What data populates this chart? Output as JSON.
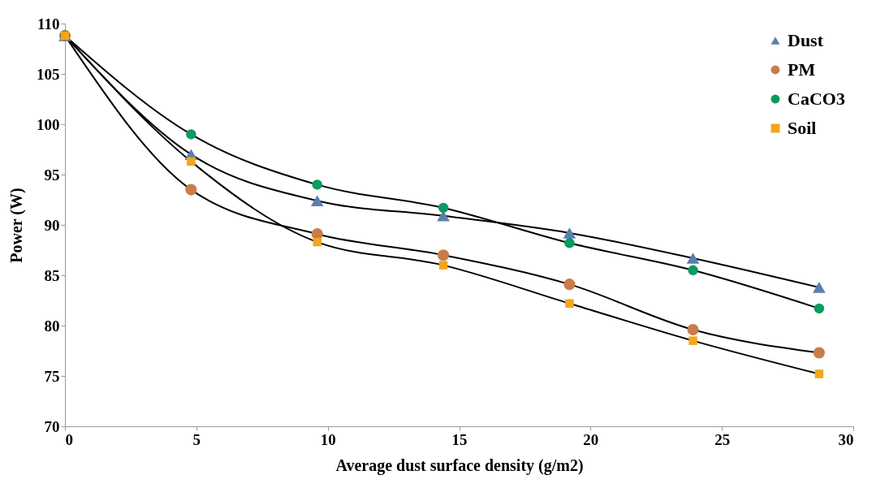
{
  "chart_data": {
    "type": "line",
    "xlabel": "Average dust surface density (g/m2)",
    "ylabel": "Power (W)",
    "x": [
      0,
      4.8,
      9.6,
      14.4,
      19.2,
      23.9,
      28.7
    ],
    "xlim": [
      0,
      30
    ],
    "xticks": [
      0,
      5,
      10,
      15,
      20,
      25,
      30
    ],
    "ylim": [
      70,
      110
    ],
    "yticks": [
      70,
      75,
      80,
      85,
      90,
      95,
      100,
      105,
      110
    ],
    "grid": false,
    "legend": "top right",
    "series": [
      {
        "name": "Dust",
        "color": "#5b7fad",
        "marker": "triangle",
        "values": [
          108.8,
          97.0,
          92.4,
          90.9,
          89.2,
          86.7,
          83.8
        ]
      },
      {
        "name": "PM",
        "color": "#c97c49",
        "marker": "circle",
        "values": [
          108.8,
          93.5,
          89.1,
          87.0,
          84.1,
          79.6,
          77.3
        ]
      },
      {
        "name": "CaCO3",
        "color": "#0b9a5f",
        "marker": "circle",
        "values": [
          108.8,
          99.0,
          94.0,
          91.7,
          88.2,
          85.5,
          81.7
        ]
      },
      {
        "name": "Soil",
        "color": "#f3a51b",
        "marker": "square",
        "values": [
          108.8,
          96.3,
          88.3,
          86.0,
          82.2,
          78.5,
          75.2
        ]
      }
    ]
  }
}
